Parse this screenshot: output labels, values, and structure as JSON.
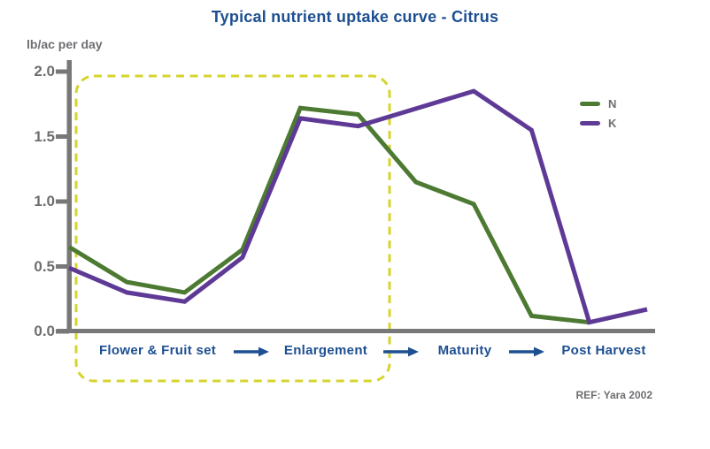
{
  "colors": {
    "accent_blue": "#1d4f91",
    "text_gray": "#6d6e71",
    "axis_gray": "#787878",
    "highlight_yellow": "#d6d42e",
    "n_green": "#4d7a32",
    "k_purple": "#5e3a96"
  },
  "chart_data": {
    "type": "line",
    "title": "Typical nutrient uptake curve - Citrus",
    "ylabel": "lb/ac per day",
    "xlabel": "",
    "ylim": [
      0,
      2
    ],
    "yticks": [
      "2.0",
      "1.5",
      "1.0",
      "0.5",
      "0.0"
    ],
    "grid": false,
    "legend_position": "upper-right",
    "stages": [
      "Flower & Fruit set",
      "Enlargement",
      "Maturity",
      "Post Harvest"
    ],
    "stage_separator_icon": "right-arrow-icon",
    "series": [
      {
        "name": "N",
        "color": "#4d7a32",
        "points": [
          [
            0,
            0.65
          ],
          [
            1,
            0.38
          ],
          [
            2,
            0.3
          ],
          [
            3,
            0.63
          ],
          [
            4,
            1.72
          ],
          [
            5,
            1.67
          ],
          [
            6,
            1.15
          ],
          [
            7,
            0.98
          ],
          [
            8,
            0.12
          ],
          [
            9,
            0.07
          ]
        ]
      },
      {
        "name": "K",
        "color": "#5e3a96",
        "points": [
          [
            0,
            0.49
          ],
          [
            1,
            0.3
          ],
          [
            2,
            0.23
          ],
          [
            3,
            0.57
          ],
          [
            4,
            1.64
          ],
          [
            5,
            1.58
          ],
          [
            7,
            1.85
          ],
          [
            8,
            1.55
          ],
          [
            9,
            0.07
          ],
          [
            10,
            0.17
          ]
        ]
      }
    ],
    "highlight_box": {
      "color": "#d6d42e",
      "style": "dashed-rounded-rect",
      "covers": [
        "Flower & Fruit set",
        "Enlargement"
      ]
    },
    "ref": "REF: Yara 2002"
  }
}
